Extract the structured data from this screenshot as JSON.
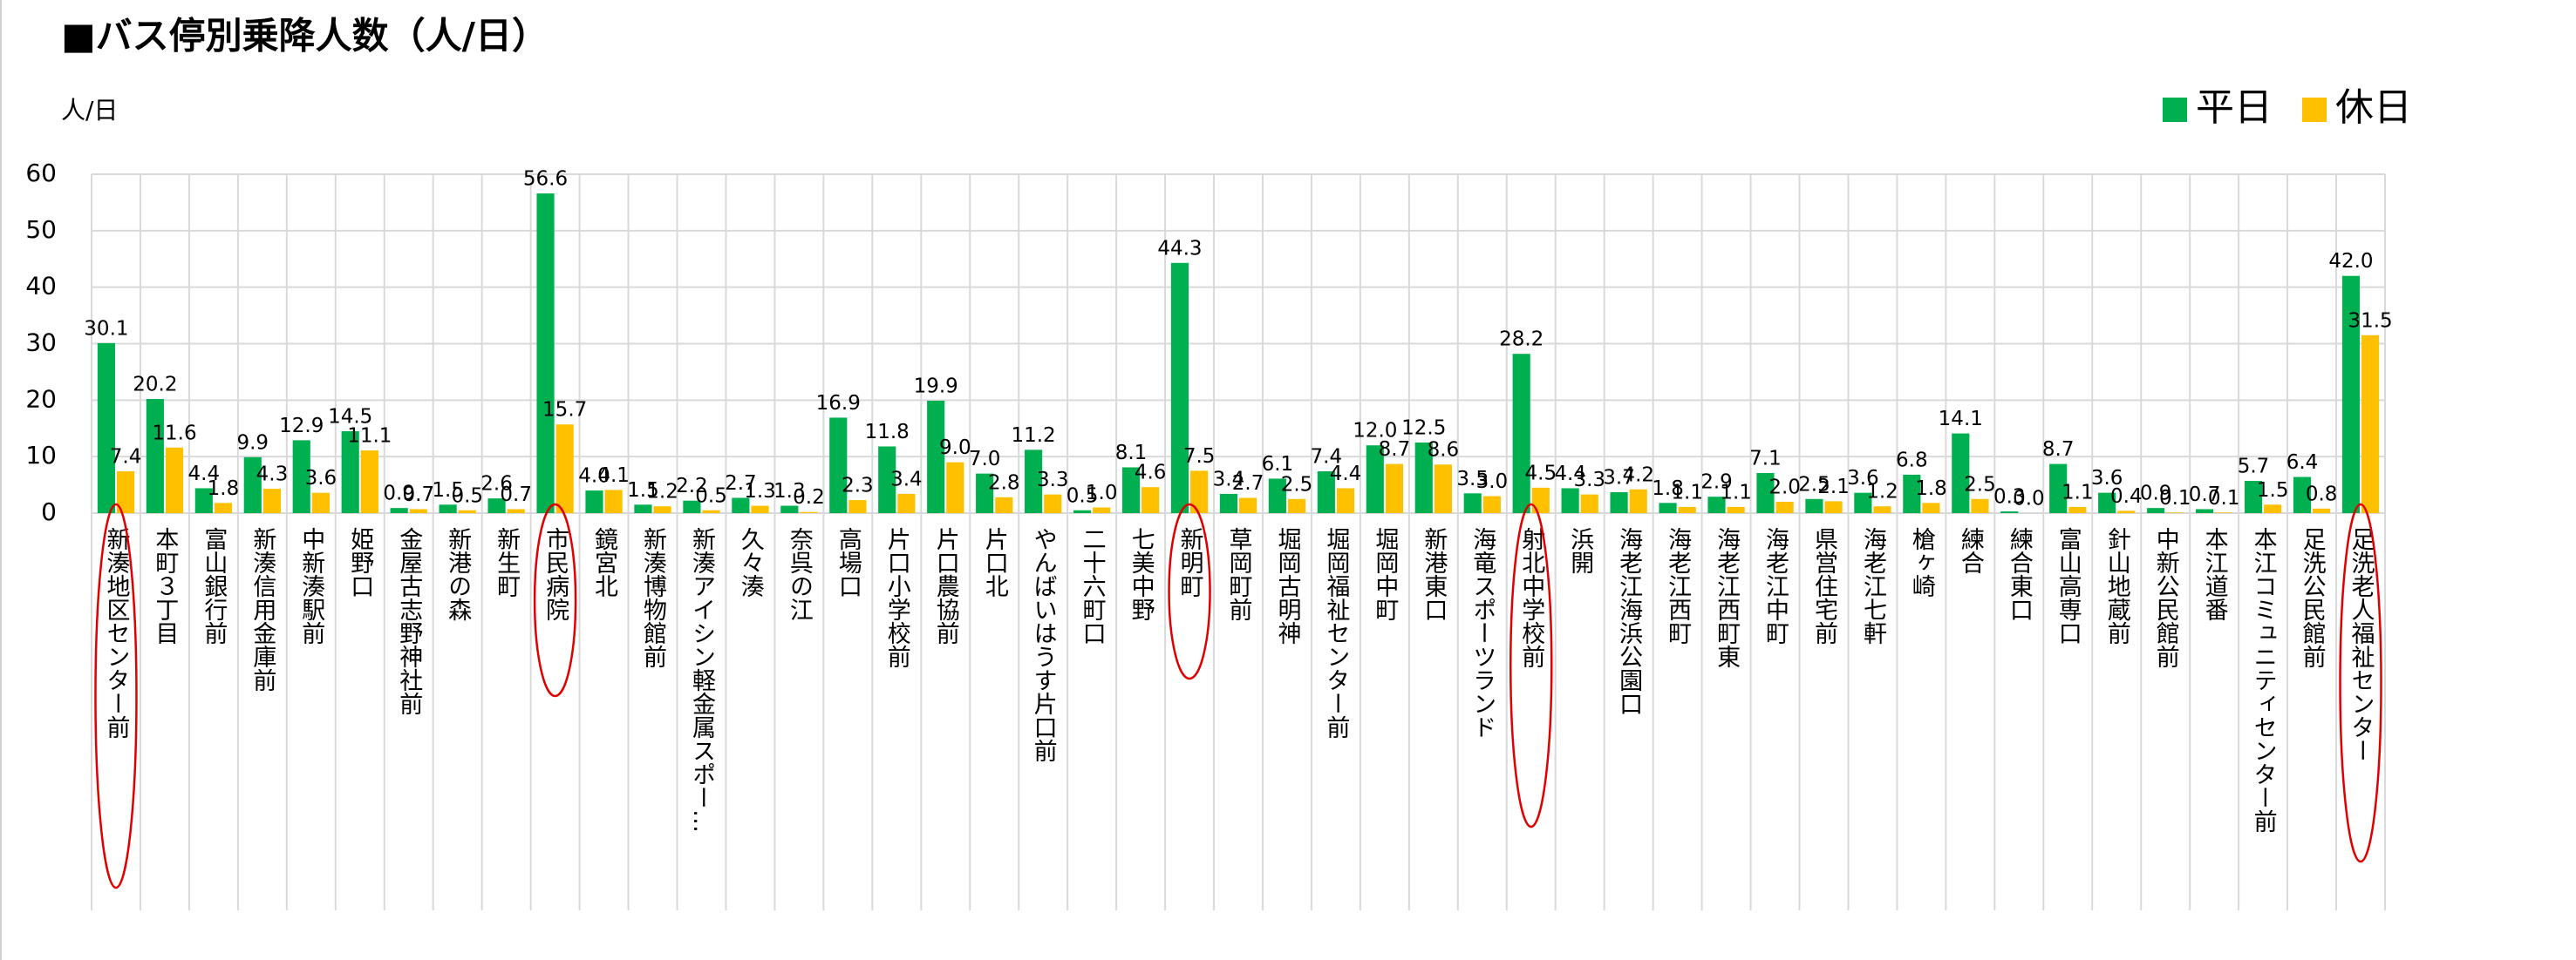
{
  "chart_data": {
    "type": "bar",
    "title": "■バス停別乗降人数（人/日）",
    "y_label": "人/日",
    "categories": [
      "新湊地区センター前",
      "本町３丁目",
      "富山銀行前",
      "新湊信用金庫前",
      "中新湊駅前",
      "姫野口",
      "金屋古志野神社前",
      "新港の森",
      "新生町",
      "市民病院",
      "鏡宮北",
      "新湊博物館前",
      "新湊アイシン軽金属スポー…",
      "久々湊",
      "奈呉の江",
      "高場口",
      "片口小学校前",
      "片口農協前",
      "片口北",
      "やんばいはうす片口前",
      "二十六町口",
      "七美中野",
      "新明町",
      "草岡町前",
      "堀岡古明神",
      "堀岡福祉センター前",
      "堀岡中町",
      "新港東口",
      "海竜スポーツランド",
      "射北中学校前",
      "浜開",
      "海老江海浜公園口",
      "海老江西町",
      "海老江西町東",
      "海老江中町",
      "県営住宅前",
      "海老江七軒",
      "槍ヶ崎",
      "練合",
      "練合東口",
      "富山高専口",
      "針山地蔵前",
      "中新公民館前",
      "本江道番",
      "本江コミュニティセンター前",
      "足洗公民館前",
      "足洗老人福祉センター"
    ],
    "series": [
      {
        "name": "平日",
        "color": "#00b050",
        "values": [
          30.1,
          20.2,
          4.4,
          9.9,
          12.9,
          14.5,
          0.9,
          1.5,
          2.6,
          56.6,
          4.0,
          1.5,
          2.2,
          2.7,
          1.3,
          16.9,
          11.8,
          19.9,
          7.0,
          11.2,
          0.5,
          8.1,
          44.3,
          3.4,
          6.1,
          7.4,
          12.0,
          12.5,
          3.5,
          28.2,
          4.4,
          3.7,
          1.8,
          2.9,
          7.1,
          2.5,
          3.6,
          6.8,
          14.1,
          0.3,
          8.7,
          3.6,
          0.9,
          0.7,
          5.7,
          6.4,
          42.0
        ],
        "value_labels": [
          "30.1",
          "20.2",
          "4.4",
          "9.9",
          "12.9",
          "14.5",
          "0.9",
          "1.5",
          "2.6",
          "56.6",
          "4.0",
          "1.5",
          "2.2",
          "2.7",
          "1.3",
          "16.9",
          "11.8",
          "19.9",
          "7.0",
          "11.2",
          "0.5",
          "8.1",
          "44.3",
          "3.4",
          "6.1",
          "7.4",
          "12.0",
          "12.5",
          "3.5",
          "28.2",
          "4.4",
          "3.7",
          "1.8",
          "2.9",
          "7.1",
          "2.5",
          "3.6",
          "6.8",
          "14.1",
          "0.3",
          "8.7",
          "3.6",
          "0.9",
          "0.7",
          "5.7",
          "6.4",
          "42.0"
        ]
      },
      {
        "name": "休日",
        "color": "#ffc000",
        "values": [
          7.4,
          11.6,
          1.8,
          4.3,
          3.6,
          11.1,
          0.7,
          0.5,
          0.7,
          15.7,
          4.1,
          1.2,
          0.5,
          1.3,
          0.2,
          2.3,
          3.4,
          9.0,
          2.8,
          3.3,
          1.0,
          4.6,
          7.5,
          2.7,
          2.5,
          4.4,
          8.7,
          8.6,
          3.0,
          4.5,
          3.3,
          4.2,
          1.1,
          1.1,
          2.0,
          2.1,
          1.2,
          1.8,
          2.5,
          0.0,
          1.1,
          0.4,
          0.1,
          0.1,
          1.5,
          0.8,
          31.5
        ],
        "value_labels": [
          "7.4",
          "11.6",
          "1.8",
          "4.3",
          "3.6",
          "11.1",
          "0.7",
          "0.5",
          "0.7",
          "15.7",
          "4.1",
          "1.2",
          "0.5",
          "1.3",
          "0.2",
          "2.3",
          "3.4",
          "9.0",
          "2.8",
          "3.3",
          "1.0",
          "4.6",
          "7.5",
          "2.7",
          "2.5",
          "4.4",
          "8.7",
          "8.6",
          "3.0",
          "4.5",
          "3.3",
          "4.2",
          "1.1",
          "1.1",
          "2.0",
          "2.1",
          "1.2",
          "1.8",
          "2.5",
          "0.0",
          "1.1",
          "0.4",
          "0.1",
          "0.1",
          "1.5",
          "0.8",
          "31.5"
        ]
      }
    ],
    "ylim": [
      0,
      60
    ],
    "yticks": [
      0,
      10,
      20,
      30,
      40,
      50,
      60
    ],
    "grid": true,
    "legend": "top-right"
  }
}
